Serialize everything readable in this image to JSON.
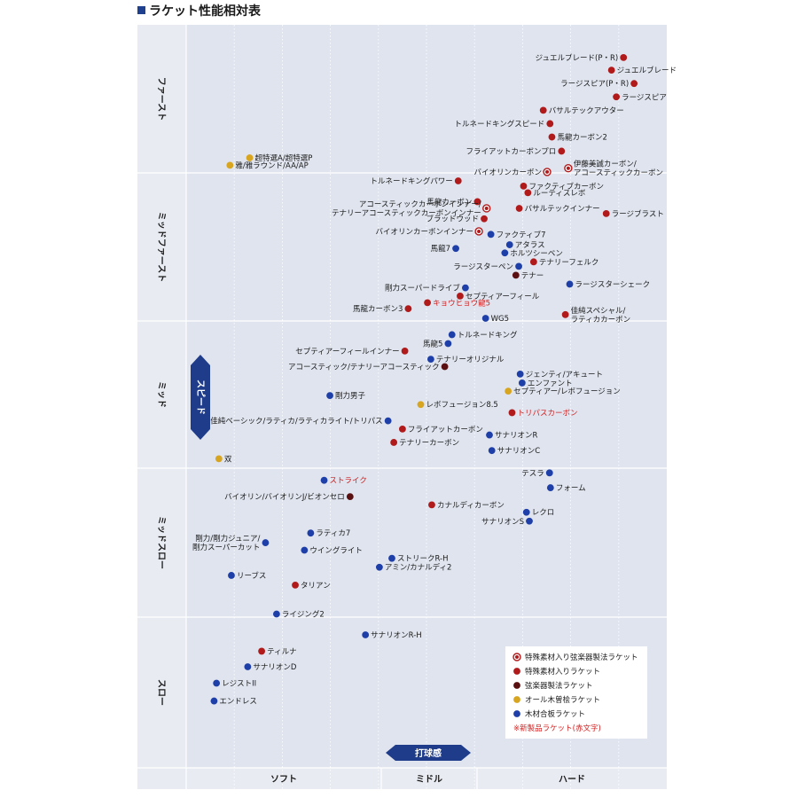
{
  "title": "ラケット性能相対表",
  "colors": {
    "special_string": "#b01a1a",
    "special": "#b01a1a",
    "string_method": "#5a1010",
    "all_wood": "#d8a520",
    "plywood": "#1f3fa8",
    "new_text": "#d12020",
    "axis_badge": "#1f3c8a",
    "plot_bg": "#dfe4ee"
  },
  "chart_data": {
    "type": "scatter",
    "title": "ラケット性能相対表",
    "xlabel": "打球感",
    "ylabel": "スピード",
    "x_bands": [
      "ソフト",
      "ミドル",
      "ハード"
    ],
    "y_bands": [
      "ファースト",
      "ミッドファースト",
      "ミッド",
      "ミッドスロー",
      "スロー"
    ],
    "xlim": [
      0,
      100
    ],
    "ylim": [
      0,
      100
    ],
    "legend": [
      {
        "key": "special_string",
        "label": "特殊素材入り弦楽器製法ラケット"
      },
      {
        "key": "special",
        "label": "特殊素材入りラケット"
      },
      {
        "key": "string_method",
        "label": "弦楽器製法ラケット"
      },
      {
        "key": "all_wood",
        "label": "オール木曽桧ラケット"
      },
      {
        "key": "plywood",
        "label": "木材合板ラケット"
      }
    ],
    "legend_note": "※新製品ラケット(赤文字)",
    "points": [
      {
        "label": "ジュエルブレード(P・R)",
        "x": 91.0,
        "y": 95.6,
        "type": "special",
        "side": "left",
        "new": false
      },
      {
        "label": "ジュエルブレード",
        "x": 88.5,
        "y": 93.9,
        "type": "special",
        "side": "right",
        "new": false
      },
      {
        "label": "ラージスピア(P・R)",
        "x": 93.2,
        "y": 92.1,
        "type": "special",
        "side": "left",
        "new": false
      },
      {
        "label": "ラージスピア",
        "x": 89.5,
        "y": 90.3,
        "type": "special",
        "side": "right",
        "new": false
      },
      {
        "label": "バサルテックアウター",
        "x": 74.3,
        "y": 88.5,
        "type": "special",
        "side": "right",
        "new": false
      },
      {
        "label": "トルネードキングスピード",
        "x": 75.7,
        "y": 86.7,
        "type": "special",
        "side": "left",
        "new": false
      },
      {
        "label": "馬龍カーボン2",
        "x": 76.1,
        "y": 84.9,
        "type": "special",
        "side": "right",
        "new": false
      },
      {
        "label": "フライアットカーボンプロ",
        "x": 78.1,
        "y": 83.0,
        "type": "special",
        "side": "left",
        "new": false
      },
      {
        "label": "伊藤美誠カーボン/\nアコースティックカーボン",
        "x": 79.5,
        "y": 80.7,
        "type": "special_string",
        "side": "right",
        "new": false
      },
      {
        "label": "バイオリンカーボン",
        "x": 75.1,
        "y": 80.2,
        "type": "special_string",
        "side": "left",
        "new": false
      },
      {
        "label": "トルネードキングパワー",
        "x": 56.6,
        "y": 79.0,
        "type": "special",
        "side": "left",
        "new": false
      },
      {
        "label": "ファクティブカーボン",
        "x": 70.2,
        "y": 78.3,
        "type": "special",
        "side": "right",
        "new": false
      },
      {
        "label": "ルーティスレボ",
        "x": 71.1,
        "y": 77.4,
        "type": "special",
        "side": "right",
        "new": false
      },
      {
        "label": "馬龍カーボン",
        "x": 60.6,
        "y": 76.2,
        "type": "special",
        "side": "left",
        "new": false
      },
      {
        "label": "アコースティックカーボンインナー/\nテナリーアコースティックカーボンインナー",
        "x": 62.5,
        "y": 75.3,
        "type": "special_string",
        "side": "left",
        "new": false
      },
      {
        "label": "バサルテックインナー",
        "x": 69.3,
        "y": 75.3,
        "type": "special",
        "side": "right",
        "new": false
      },
      {
        "label": "ラージブラスト",
        "x": 87.4,
        "y": 74.6,
        "type": "special",
        "side": "right",
        "new": false
      },
      {
        "label": "ブラッドウッド",
        "x": 62.0,
        "y": 73.9,
        "type": "special",
        "side": "left",
        "new": false
      },
      {
        "label": "バイオリンカーボンインナー",
        "x": 60.9,
        "y": 72.2,
        "type": "special_string",
        "side": "left",
        "new": false
      },
      {
        "label": "ファクティブ7",
        "x": 63.4,
        "y": 71.8,
        "type": "plywood",
        "side": "right",
        "new": false
      },
      {
        "label": "アタラス",
        "x": 67.3,
        "y": 70.4,
        "type": "plywood",
        "side": "right",
        "new": false
      },
      {
        "label": "馬龍7",
        "x": 56.1,
        "y": 69.9,
        "type": "plywood",
        "side": "left",
        "new": false
      },
      {
        "label": "ホルツシーベン",
        "x": 66.3,
        "y": 69.3,
        "type": "plywood",
        "side": "right",
        "new": false
      },
      {
        "label": "テナリーフェルク",
        "x": 72.3,
        "y": 68.1,
        "type": "special",
        "side": "right",
        "new": false
      },
      {
        "label": "ラージスターペン",
        "x": 69.2,
        "y": 67.5,
        "type": "plywood",
        "side": "left",
        "new": false
      },
      {
        "label": "テナー",
        "x": 68.6,
        "y": 66.3,
        "type": "string_method",
        "side": "right",
        "new": false
      },
      {
        "label": "ラージスターシェーク",
        "x": 79.8,
        "y": 65.1,
        "type": "plywood",
        "side": "right",
        "new": false
      },
      {
        "label": "剛力スーパードライブ",
        "x": 58.1,
        "y": 64.6,
        "type": "plywood",
        "side": "left",
        "new": false
      },
      {
        "label": "セプティアーフィール",
        "x": 57.0,
        "y": 63.5,
        "type": "special",
        "side": "right",
        "new": false
      },
      {
        "label": "キョウヒョウ龍5",
        "x": 50.2,
        "y": 62.6,
        "type": "special",
        "side": "right",
        "new": true
      },
      {
        "label": "馬龍カーボン3",
        "x": 46.2,
        "y": 61.8,
        "type": "special",
        "side": "left",
        "new": false
      },
      {
        "label": "佳純スペシャル/\nラティカカーボン",
        "x": 78.9,
        "y": 61.0,
        "type": "special",
        "side": "right",
        "new": false
      },
      {
        "label": "WG5",
        "x": 62.3,
        "y": 60.5,
        "type": "plywood",
        "side": "right",
        "new": false
      },
      {
        "label": "トルネードキング",
        "x": 55.3,
        "y": 58.3,
        "type": "plywood",
        "side": "right",
        "new": false
      },
      {
        "label": "馬龍5",
        "x": 54.5,
        "y": 57.1,
        "type": "plywood",
        "side": "left",
        "new": false
      },
      {
        "label": "セプティアーフィールインナー",
        "x": 45.5,
        "y": 56.1,
        "type": "special",
        "side": "left",
        "new": false
      },
      {
        "label": "テナリーオリジナル",
        "x": 50.9,
        "y": 55.0,
        "type": "plywood",
        "side": "right",
        "new": false
      },
      {
        "label": "アコースティック/テナリーアコースティック",
        "x": 53.8,
        "y": 54.0,
        "type": "string_method",
        "side": "left",
        "new": false
      },
      {
        "label": "ジェンティ/アキュート",
        "x": 69.5,
        "y": 53.0,
        "type": "plywood",
        "side": "right",
        "new": false
      },
      {
        "label": "エンファント",
        "x": 69.9,
        "y": 51.8,
        "type": "plywood",
        "side": "right",
        "new": false
      },
      {
        "label": "セプティアー/レボフュージョン",
        "x": 67.0,
        "y": 50.7,
        "type": "all_wood",
        "side": "right",
        "new": false
      },
      {
        "label": "剛力男子",
        "x": 29.9,
        "y": 50.1,
        "type": "plywood",
        "side": "right",
        "new": false
      },
      {
        "label": "レボフュージョン8.5",
        "x": 48.8,
        "y": 48.9,
        "type": "all_wood",
        "side": "right",
        "new": false
      },
      {
        "label": "トリパスカーボン",
        "x": 67.8,
        "y": 47.8,
        "type": "special",
        "side": "right",
        "new": true
      },
      {
        "label": "佳純ベーシック/ラティカ/ラティカライト/トリパス",
        "x": 42.0,
        "y": 46.7,
        "type": "plywood",
        "side": "left",
        "new": false
      },
      {
        "label": "フライアットカーボン",
        "x": 45.0,
        "y": 45.6,
        "type": "special",
        "side": "right",
        "new": false
      },
      {
        "label": "サナリオンR",
        "x": 63.1,
        "y": 44.8,
        "type": "plywood",
        "side": "right",
        "new": false
      },
      {
        "label": "テナリーカーボン",
        "x": 43.2,
        "y": 43.8,
        "type": "special",
        "side": "right",
        "new": false
      },
      {
        "label": "サナリオンC",
        "x": 63.6,
        "y": 42.7,
        "type": "plywood",
        "side": "right",
        "new": false
      },
      {
        "label": "双",
        "x": 6.8,
        "y": 41.6,
        "type": "all_wood",
        "side": "right",
        "new": false
      },
      {
        "label": "テスラ",
        "x": 75.6,
        "y": 39.7,
        "type": "plywood",
        "side": "left",
        "new": false
      },
      {
        "label": "ストライク",
        "x": 28.7,
        "y": 38.7,
        "type": "plywood",
        "side": "right",
        "new": true
      },
      {
        "label": "フォーム",
        "x": 75.8,
        "y": 37.7,
        "type": "plywood",
        "side": "right",
        "new": false
      },
      {
        "label": "バイオリン/バイオリンJ/ビオンセロ",
        "x": 34.1,
        "y": 36.5,
        "type": "string_method",
        "side": "left",
        "new": false
      },
      {
        "label": "カナルディカーボン",
        "x": 51.1,
        "y": 35.4,
        "type": "special",
        "side": "right",
        "new": false
      },
      {
        "label": "レクロ",
        "x": 70.8,
        "y": 34.4,
        "type": "plywood",
        "side": "right",
        "new": false
      },
      {
        "label": "サナリオンS",
        "x": 71.4,
        "y": 33.2,
        "type": "plywood",
        "side": "left",
        "new": false
      },
      {
        "label": "ラティカ7",
        "x": 25.9,
        "y": 31.6,
        "type": "plywood",
        "side": "right",
        "new": false
      },
      {
        "label": "剛力/剛力ジュニア/\n剛力スーパーカット",
        "x": 16.5,
        "y": 30.3,
        "type": "plywood",
        "side": "left",
        "new": false
      },
      {
        "label": "ウイングライト",
        "x": 24.6,
        "y": 29.3,
        "type": "plywood",
        "side": "right",
        "new": false
      },
      {
        "label": "ストリークR-H",
        "x": 42.8,
        "y": 28.2,
        "type": "plywood",
        "side": "right",
        "new": false
      },
      {
        "label": "アミン/カナルディ2",
        "x": 40.2,
        "y": 27.0,
        "type": "plywood",
        "side": "right",
        "new": false
      },
      {
        "label": "リーブス",
        "x": 9.4,
        "y": 25.9,
        "type": "plywood",
        "side": "right",
        "new": false
      },
      {
        "label": "タリアン",
        "x": 22.7,
        "y": 24.6,
        "type": "special",
        "side": "right",
        "new": false
      },
      {
        "label": "ライジング2",
        "x": 18.8,
        "y": 20.7,
        "type": "plywood",
        "side": "right",
        "new": false
      },
      {
        "label": "サナリオンR-H",
        "x": 37.3,
        "y": 17.9,
        "type": "plywood",
        "side": "right",
        "new": false
      },
      {
        "label": "ティルナ",
        "x": 15.7,
        "y": 15.7,
        "type": "special",
        "side": "right",
        "new": false
      },
      {
        "label": "サナリオンD",
        "x": 12.8,
        "y": 13.6,
        "type": "plywood",
        "side": "right",
        "new": false
      },
      {
        "label": "レジストII",
        "x": 6.3,
        "y": 11.4,
        "type": "plywood",
        "side": "right",
        "new": false
      },
      {
        "label": "エンドレス",
        "x": 5.8,
        "y": 9.0,
        "type": "plywood",
        "side": "right",
        "new": false
      },
      {
        "label": "超特選A/超特選P",
        "x": 13.2,
        "y": 82.1,
        "type": "all_wood",
        "side": "right",
        "new": false
      },
      {
        "label": "雅/雅ラウンド/AA/AP",
        "x": 9.1,
        "y": 81.1,
        "type": "all_wood",
        "side": "right",
        "new": false
      }
    ]
  }
}
